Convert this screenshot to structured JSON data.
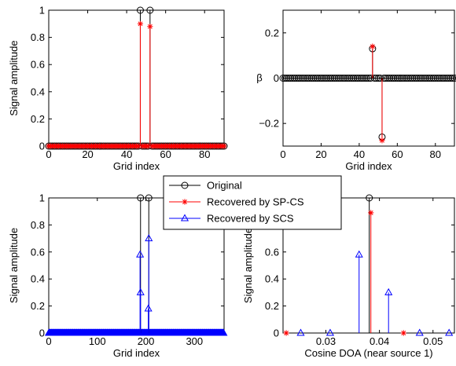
{
  "chart_data": [
    {
      "type": "stem",
      "panel": "top-left",
      "xlabel": "Grid index",
      "ylabel": "Signal amplitude",
      "xlim": [
        0,
        90
      ],
      "ylim": [
        0,
        1
      ],
      "xticks": [
        0,
        20,
        40,
        60,
        80
      ],
      "yticks": [
        0,
        0.2,
        0.4,
        0.6,
        0.8,
        1
      ],
      "ytick_labels": [
        "0",
        "0.2",
        "0.4",
        "0.6",
        "0.8",
        "1"
      ],
      "grid_count": 91,
      "series": [
        {
          "name": "Original",
          "color": "#000000",
          "marker": "circle",
          "points": [
            [
              47,
              1
            ],
            [
              52,
              1
            ]
          ]
        },
        {
          "name": "Recovered by SP-CS",
          "color": "#ff0000",
          "marker": "star",
          "points": [
            [
              47,
              0.9
            ],
            [
              52,
              0.88
            ]
          ]
        }
      ],
      "zero_marker_series": [
        "Original",
        "Recovered by SP-CS"
      ]
    },
    {
      "type": "stem",
      "panel": "top-right",
      "xlabel": "Grid index",
      "ylabel": "β",
      "xlim": [
        0,
        90
      ],
      "ylim": [
        -0.3,
        0.3
      ],
      "xticks": [
        0,
        20,
        40,
        60,
        80
      ],
      "yticks": [
        -0.2,
        0,
        0.2
      ],
      "ytick_labels": [
        "−0.2",
        "0",
        "0.2"
      ],
      "grid_count": 91,
      "series": [
        {
          "name": "Original",
          "color": "#000000",
          "marker": "circle",
          "points": [
            [
              47,
              0.13
            ],
            [
              52,
              -0.26
            ]
          ]
        },
        {
          "name": "Recovered by SP-CS",
          "color": "#ff0000",
          "marker": "star",
          "points": [
            [
              47,
              0.14
            ],
            [
              52,
              -0.275
            ]
          ]
        }
      ],
      "zero_marker_series": [
        "Original"
      ]
    },
    {
      "type": "stem",
      "panel": "bottom-left",
      "xlabel": "Grid index",
      "ylabel": "Signal amplitude",
      "xlim": [
        0,
        361
      ],
      "ylim": [
        0,
        1
      ],
      "xticks": [
        0,
        100,
        200,
        300
      ],
      "yticks": [
        0,
        0.2,
        0.4,
        0.6,
        0.8,
        1
      ],
      "ytick_labels": [
        "0",
        "0.2",
        "0.4",
        "0.6",
        "0.8",
        "1"
      ],
      "grid_count": 361,
      "series": [
        {
          "name": "Original",
          "color": "#000000",
          "marker": "circle",
          "points": [
            [
              189,
              1
            ],
            [
              206,
              1
            ]
          ]
        },
        {
          "name": "Recovered by SCS",
          "color": "#0000ff",
          "marker": "triangle",
          "points": [
            [
              188,
              0.58
            ],
            [
              189,
              0.3
            ],
            [
              205,
              0.18
            ],
            [
              206,
              0.7
            ]
          ]
        }
      ],
      "zero_marker_series": [
        "Recovered by SCS"
      ]
    },
    {
      "type": "stem",
      "panel": "bottom-right",
      "xlabel": "Cosine DOA (near source 1)",
      "ylabel": "Signal amplitude",
      "xlim": [
        0.022,
        0.054
      ],
      "ylim": [
        0,
        1
      ],
      "xticks": [
        0.03,
        0.04,
        0.05
      ],
      "xtick_labels": [
        "0.03",
        "0.04",
        "0.05"
      ],
      "yticks": [
        0,
        0.2,
        0.4,
        0.6,
        0.8,
        1
      ],
      "ytick_labels": [
        "0",
        "0.2",
        "0.4",
        "0.6",
        "0.8",
        "1"
      ],
      "series": [
        {
          "name": "Original",
          "color": "#000000",
          "marker": "circle",
          "points": [
            [
              0.0381,
              1
            ]
          ]
        },
        {
          "name": "Recovered by SP-CS",
          "color": "#ff0000",
          "marker": "star",
          "points": [
            [
              0.0226,
              0
            ],
            [
              0.0384,
              0.89
            ],
            [
              0.0445,
              0
            ]
          ]
        },
        {
          "name": "Recovered by SCS",
          "color": "#0000ff",
          "marker": "triangle",
          "points": [
            [
              0.0253,
              0
            ],
            [
              0.0308,
              0
            ],
            [
              0.0362,
              0.58
            ],
            [
              0.0417,
              0.3
            ],
            [
              0.0475,
              0
            ],
            [
              0.053,
              0
            ]
          ]
        }
      ]
    }
  ],
  "legend": {
    "placement": "center",
    "entries": [
      {
        "label": "Original",
        "color": "#000000",
        "marker": "circle"
      },
      {
        "label": "Recovered by SP-CS",
        "color": "#ff0000",
        "marker": "star"
      },
      {
        "label": "Recovered by SCS",
        "color": "#0000ff",
        "marker": "triangle"
      }
    ]
  }
}
